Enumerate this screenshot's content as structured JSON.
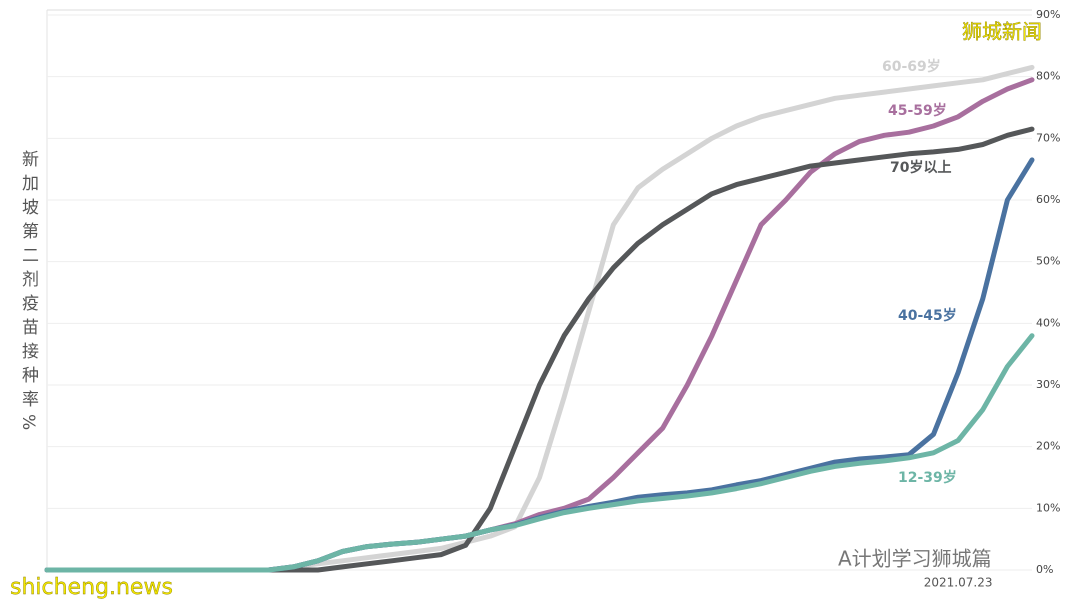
{
  "chart_data": {
    "type": "line",
    "y_label": "新加坡第二剂疫苗接种率%",
    "categories": [
      null,
      null,
      null,
      null,
      null,
      null,
      null,
      null,
      null,
      null,
      null,
      null,
      null,
      null,
      null,
      null,
      null,
      null,
      null,
      null,
      null,
      null,
      null,
      null,
      null,
      null,
      null,
      null,
      null,
      null,
      null,
      null,
      null,
      null,
      null,
      null,
      null,
      "2021.07.23",
      null,
      null,
      null
    ],
    "series": [
      {
        "name": "60-69岁",
        "color": "#d4d4d4",
        "values": [
          0,
          0,
          0,
          0,
          0,
          0,
          0,
          0,
          0,
          0,
          0.5,
          1,
          1.5,
          2,
          2.5,
          3,
          3.5,
          4.5,
          5.5,
          7,
          15,
          28,
          42,
          56,
          62,
          65,
          67.5,
          70,
          72,
          73.5,
          74.5,
          75.5,
          76.5,
          77,
          77.5,
          78,
          78.5,
          79,
          79.5,
          80.5,
          81.5
        ]
      },
      {
        "name": "45-59岁",
        "color": "#a86f9e",
        "values": [
          0,
          0,
          0,
          0,
          0,
          0,
          0,
          0,
          0,
          0,
          0.5,
          1.5,
          3,
          3.8,
          4.2,
          4.5,
          5,
          5.5,
          6.5,
          7.5,
          9,
          10,
          11.5,
          15,
          19,
          23,
          30,
          38,
          47,
          56,
          60,
          64.5,
          67.5,
          69.5,
          70.5,
          71,
          72,
          73.5,
          76,
          78,
          79.5
        ]
      },
      {
        "name": "70岁以上",
        "color": "#555759",
        "values": [
          0,
          0,
          0,
          0,
          0,
          0,
          0,
          0,
          0,
          0,
          0,
          0,
          0.5,
          1,
          1.5,
          2,
          2.5,
          4,
          10,
          20,
          30,
          38,
          44,
          49,
          53,
          56,
          58.5,
          61,
          62.5,
          63.5,
          64.5,
          65.5,
          66,
          66.5,
          67,
          67.5,
          67.8,
          68.2,
          69,
          70.5,
          71.5
        ]
      },
      {
        "name": "40-45岁",
        "color": "#4a72a0",
        "values": [
          0,
          0,
          0,
          0,
          0,
          0,
          0,
          0,
          0,
          0,
          0.5,
          1.5,
          3,
          3.8,
          4.2,
          4.5,
          5,
          5.5,
          6.5,
          7.3,
          8.5,
          9.5,
          10.3,
          11,
          11.8,
          12.2,
          12.5,
          13,
          13.8,
          14.5,
          15.5,
          16.5,
          17.5,
          18,
          18.3,
          18.7,
          22,
          32,
          44,
          60,
          66.5
        ]
      },
      {
        "name": "12-39岁",
        "color": "#6db5a6",
        "values": [
          0,
          0,
          0,
          0,
          0,
          0,
          0,
          0,
          0,
          0,
          0.5,
          1.5,
          3,
          3.8,
          4.2,
          4.5,
          5,
          5.5,
          6.5,
          7.2,
          8.3,
          9.3,
          10,
          10.6,
          11.2,
          11.6,
          12,
          12.5,
          13.2,
          14,
          15,
          16,
          16.8,
          17.3,
          17.7,
          18.2,
          19,
          21,
          26,
          33,
          38
        ]
      }
    ],
    "ylim": [
      0,
      90
    ],
    "yticks": [
      {
        "value": 0,
        "label": "0%"
      },
      {
        "value": 10,
        "label": "10%"
      },
      {
        "value": 20,
        "label": "20%"
      },
      {
        "value": 30,
        "label": "30%"
      },
      {
        "value": 40,
        "label": "40%"
      },
      {
        "value": 50,
        "label": "50%"
      },
      {
        "value": 60,
        "label": "60%"
      },
      {
        "value": 70,
        "label": "70%"
      },
      {
        "value": 80,
        "label": "80%"
      },
      {
        "value": 90,
        "label": "90%"
      }
    ],
    "grid": true,
    "annotations": [
      "狮城新闻",
      "shicheng.news",
      "A计划学习狮城篇"
    ]
  }
}
